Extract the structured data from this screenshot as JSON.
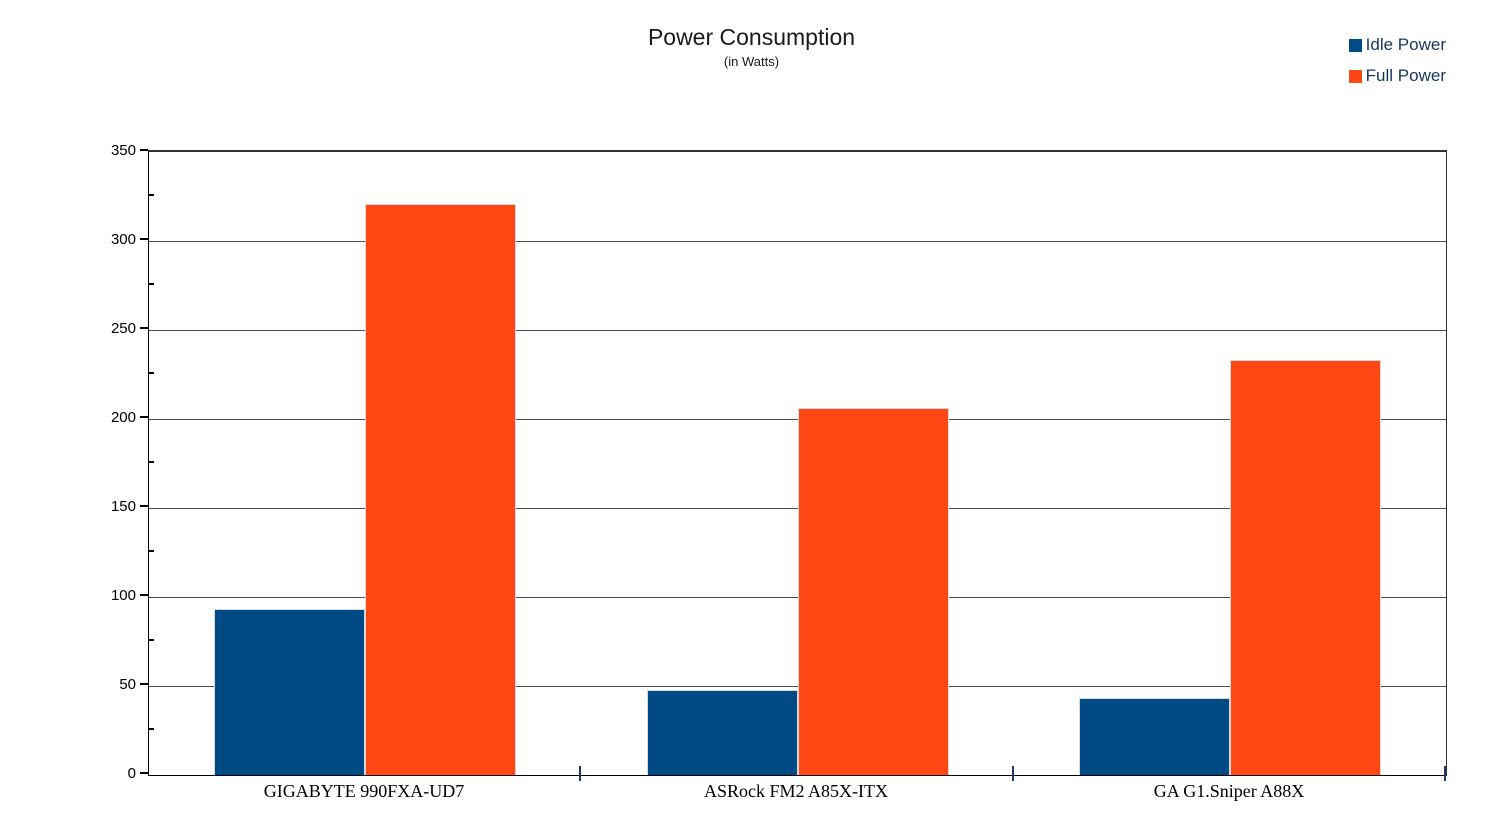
{
  "chart_data": {
    "type": "bar",
    "title": "Power Consumption",
    "subtitle": "(in Watts)",
    "categories": [
      "GIGABYTE 990FXA-UD7",
      "ASRock FM2 A85X-ITX",
      "GA G1.Sniper A88X"
    ],
    "series": [
      {
        "name": "Idle Power",
        "color": "#004b85",
        "values": [
          93,
          48,
          43
        ]
      },
      {
        "name": "Full Power",
        "color": "#ff4713",
        "values": [
          321,
          206,
          233
        ]
      }
    ],
    "ylabel": "",
    "xlabel": "",
    "ylim": [
      0,
      350
    ],
    "y_major_step": 50,
    "y_minor_step": 25,
    "y_tick_labels": [
      "0",
      "50",
      "100",
      "150",
      "200",
      "250",
      "300",
      "350"
    ],
    "grid": "horizontal-major",
    "legend_position": "top-right",
    "gridline_color": "#4d4d4d",
    "legend_text_color": "#17365d"
  }
}
